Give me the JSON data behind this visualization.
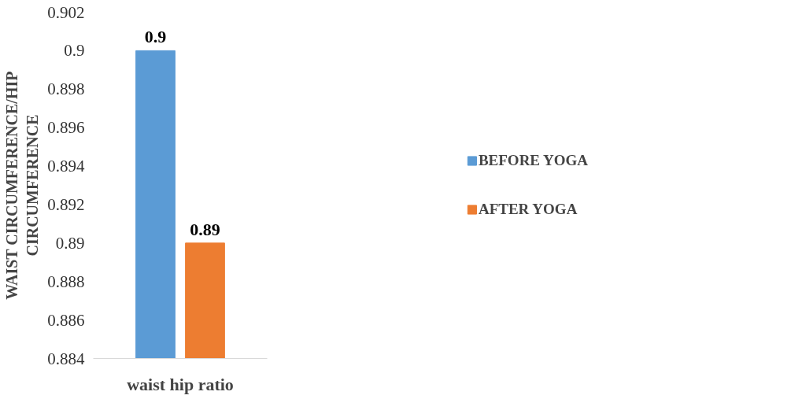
{
  "chart_data": {
    "type": "bar",
    "categories": [
      "waist hip ratio"
    ],
    "ylabel": "WAIST CIRCUMFERENCE/HIP\nCIRCUMFERENCE",
    "series": [
      {
        "name": "BEFORE YOGA",
        "color": "#5b9bd5",
        "values": [
          0.9
        ]
      },
      {
        "name": "AFTER YOGA",
        "color": "#ed7d31",
        "values": [
          0.89
        ]
      }
    ],
    "ylim": [
      0.884,
      0.902
    ],
    "yticks": [
      0.884,
      0.886,
      0.888,
      0.89,
      0.892,
      0.894,
      0.896,
      0.898,
      0.9,
      0.902
    ],
    "data_labels": true,
    "grid": false,
    "legend": "right"
  }
}
